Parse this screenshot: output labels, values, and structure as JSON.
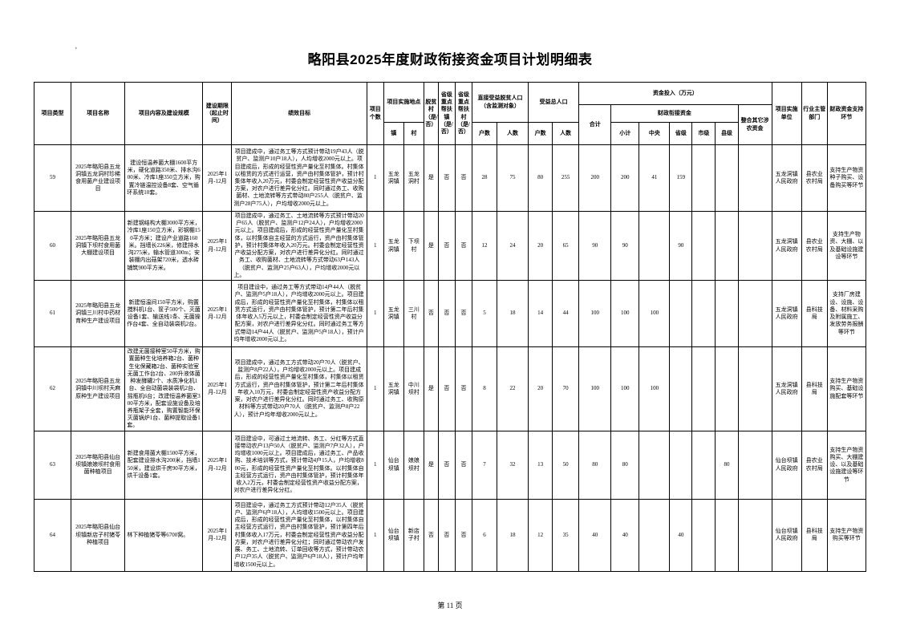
{
  "page": {
    "title": "略阳县2025年度财政衔接资金项目计划明细表",
    "page_number": "第 11 页",
    "corner_mark": "'"
  },
  "table": {
    "headers": {
      "project_type": "项目类型",
      "project_name": "项目名称",
      "content_scale": "项目内容及建设规模",
      "period": "建设期限（起止时间）",
      "performance_goal": "绩效目标",
      "project_count": "项目个数",
      "location": "项目实施地点",
      "town": "镇",
      "village": "村",
      "poor_village": "脱贫村（是/否）",
      "key_town": "省级重点帮扶镇（是/否）",
      "key_village": "省级重点帮扶村（是/否）",
      "direct_benefit": "直接受益脱贫人口（含监测对象）",
      "households": "户数",
      "people": "人数",
      "total_benefit": "受益总人口",
      "investment": "资金投入（万元）",
      "fund_total": "合计",
      "fiscal_funds": "财政衔接资金",
      "subtotal": "小计",
      "central": "中央",
      "provincial": "省级",
      "municipal": "市级",
      "county": "县级",
      "other_funds": "整合其它涉农资金",
      "implement_unit": "项目实施单位",
      "industry_dept": "行业主管部门",
      "support_stage": "财政资金支持环节"
    },
    "rows": [
      {
        "seq": "59",
        "name": "2025年略阳县五龙洞镇五龙洞村珍稀食用菌产业建设项目",
        "content": "建设恒温养菌大棚1600平方米，硬化道路350米、排水沟600米、冷库1座350立方米，购置冷链温控设备8套、空气循环系统10套。",
        "period": "2025年1月-12月",
        "goal": "项目建成中，通过务工等方式预计带动19户43人（脱贫户、监测户10户18人），人均增收2000元以上。项目建成后，形成的经营性资产量化至村集体。村集体以租赁的方式进行运营，资产由村集体管护，预计村集体年收入20万元，村委会制定经营性资产收益分配方案，对农户进行差异化分红。同时通过务工、收购菌材、土地流转等方式带动80户255人（脱贫户、监测户28户75人），户均增收2000元以上。",
        "count": "1",
        "town": "五龙洞镇",
        "village": "五龙洞村",
        "poor_village": "是",
        "key_town": "否",
        "key_village": "否",
        "direct_hh": "28",
        "direct_pp": "75",
        "total_hh": "80",
        "total_pp": "255",
        "fund_total": "200",
        "fund_subtotal": "200",
        "fund_central": "41",
        "fund_provincial": "159",
        "fund_municipal": "",
        "fund_county": "",
        "fund_other": "",
        "unit": "五龙洞镇人民政府",
        "dept": "县农业农村局",
        "support": "支持生产物资种子购买、设备购买等环节"
      },
      {
        "seq": "60",
        "name": "2025年略阳县五龙洞镇下坝村食用菌大棚建设项目",
        "content": "新建钢结构大棚3000平方米，冷库1座150立方米，彩钢棚150平方米；建设产业道路160米。挡墙长226米，修建排水沟275米，输水管道300m；安装棚内出菇架720米，透水砖铺筑900平方米。",
        "period": "2025年1月-12月",
        "goal": "项目建成中，通过务工、土地流转等方式预计带动20户65人（脱贫户、监测户12户24人），户均增收2000元以上。项目建成后，形成的经营性资产量化至村集体，以村集体自主经营的方式运行，资产由村集体管护，预计村集体年收入20万元。村委会制定经营性资产收益分配方案，对农户进行差异化分红。同时通过务工、收购菌材、土地流转等方式带动63户143人（脱贫户、监测户25户63人），户均增收2000元以上。",
        "count": "1",
        "town": "五龙洞镇",
        "village": "下坝村",
        "poor_village": "是",
        "key_town": "否",
        "key_village": "否",
        "direct_hh": "12",
        "direct_pp": "24",
        "total_hh": "20",
        "total_pp": "65",
        "fund_total": "90",
        "fund_subtotal": "90",
        "fund_central": "",
        "fund_provincial": "90",
        "fund_municipal": "",
        "fund_county": "",
        "fund_other": "",
        "unit": "五龙洞镇人民政府",
        "dept": "县农业农村局",
        "support": "支持生产物资、大棚、以及基础设施建设等环节"
      },
      {
        "seq": "61",
        "name": "2025年略阳县五龙洞镇三川村中药材育种生产建设项目",
        "content": "新建恒温间150平方米，购置搅料机1台、筐子500个、灭菌设备1套、输送线1条、无菌操作台4套、全自动装袋机2台。",
        "period": "2025年1月-12月",
        "goal": "项目建设中，通过务工等方式带动14户44人（脱贫户、监测户5户18人），户均增收2000元以上。项目建成后，形成的经营性资产量化至村集体，村集体以租赁方式运行，资产由村集体管护，预计第二年后村集体年收入5万元以上，村委会制定经营性资产收益分配方案，对农户进行差异化分红。同时通过务工等方式带动14户44人（脱贫户、监测户5户18人），预计户均年增收2000元以上。",
        "count": "1",
        "town": "五龙洞镇",
        "village": "三川村",
        "poor_village": "否",
        "key_town": "否",
        "key_village": "否",
        "direct_hh": "5",
        "direct_pp": "18",
        "total_hh": "14",
        "total_pp": "44",
        "fund_total": "100",
        "fund_subtotal": "100",
        "fund_central": "100",
        "fund_provincial": "",
        "fund_municipal": "",
        "fund_county": "",
        "fund_other": "",
        "unit": "五龙洞镇人民政府",
        "dept": "县科技局",
        "support": "支持厂房建设、设施、设备、材料采购及附属施工、发放劳务报酬等环节"
      },
      {
        "seq": "62",
        "name": "2025年略阳县五龙洞镇中川坝村天麻原种生产建设项目",
        "content": "改建无菌接种室50平方米，购置菌种生化培养箱2台、菌种生化保藏箱2台、菌种实验室无菌工作台2台、200升液体菌种发酵罐2个、水质净化机1台、全自动菌袋装袋机2台、摇瓶机6台；改建恒温养菌室300平方米，配套设施设备及培养瓶架子全套，购置智能环保灭菌锅炉1台、菌种提取设备1套。",
        "period": "2025年1月-12月",
        "goal": "项目建成中，通过务工方式带动20户70人（脱贫户、监测户8户22人），户均增收2000元以上。项目建成后，形成的经营性资产量化至村集体，村集体以租赁方式运行，资产由村集体管护，预计第二年后村集体年收入10万元，村委会制定经营性资产收益分配方案，对农户进行差异化分红。同时通过务工、收购原材料等方式带动20户70人（脱贫户、监测户8户22人），预计户均年增收2000元以上。",
        "count": "1",
        "town": "五龙洞镇",
        "village": "中川坝村",
        "poor_village": "是",
        "key_town": "否",
        "key_village": "否",
        "direct_hh": "8",
        "direct_pp": "22",
        "total_hh": "20",
        "total_pp": "70",
        "fund_total": "100",
        "fund_subtotal": "100",
        "fund_central": "100",
        "fund_provincial": "",
        "fund_municipal": "",
        "fund_county": "",
        "fund_other": "",
        "unit": "五龙洞镇人民政府",
        "dept": "县科技局",
        "support": "支持生产物资购买、基础设施配套等环节"
      },
      {
        "seq": "63",
        "name": "2025年略阳县仙台坝镇娘娘坝村食用菌种植项目",
        "content": "新建食用菌大棚1500平方米，配套建设排水沟200米，挡墙150米，建设烘干房90平方米，烘干设备1套。",
        "period": "2025年1月-12月",
        "goal": "项目建设中，可通过土地流转、务工、分红等方式直接带动农户13户50人（脱贫户、监测户7户32人），户均增收1000元以上。项目建成后，通过务工、产品收购、技术培训等方式，预计带动4户15人，户均增收800元，形成的经营性资产量化至村集体。以村集体自主经营方式运行，资产由村集体管护，预计村集体年收入2万元，村委会制定经营性资产收益分配方案，对农户进行差异化分红。",
        "count": "1",
        "town": "仙台坝镇",
        "village": "娘娘坝村",
        "poor_village": "是",
        "key_town": "否",
        "key_village": "否",
        "direct_hh": "7",
        "direct_pp": "32",
        "total_hh": "13",
        "total_pp": "50",
        "fund_total": "80",
        "fund_subtotal": "80",
        "fund_central": "",
        "fund_provincial": "",
        "fund_municipal": "",
        "fund_county": "80",
        "fund_other": "",
        "unit": "仙台坝镇人民政府",
        "dept": "县农业农村局",
        "support": "支持生产物资购买、大棚建设、以及基础设施建设等环节"
      },
      {
        "seq": "64",
        "name": "2025年略阳县仙台坝镇新店子村猪苓种植项目",
        "content": "林下种植猪苓等6700窝。",
        "period": "2025年1月-12月",
        "goal": "项目建设中，通过务工方式预计带动12户35人（脱贫户、监测户6户18人），人均增收1500元以上。项目建成后，形成的经营性资产量化至村集体，以村集体自主经营方式运行，资产由村集体管护，预计第四年后村集体收入17万元，村委会制定经营性资产收益分配方案，对农户进行差异化分红；同时通过带动农户发展、务工、土地流转、订单回收等方式，预计带动农户12户35人（脱贫户、监测户6户18人），预计户均年增收1500元以上。",
        "count": "1",
        "town": "仙台坝镇",
        "village": "新店子村",
        "poor_village": "否",
        "key_town": "否",
        "key_village": "否",
        "direct_hh": "6",
        "direct_pp": "18",
        "total_hh": "12",
        "total_pp": "35",
        "fund_total": "40",
        "fund_subtotal": "40",
        "fund_central": "",
        "fund_provincial": "40",
        "fund_municipal": "",
        "fund_county": "",
        "fund_other": "",
        "unit": "仙台坝镇人民政府",
        "dept": "县科技局",
        "support": "支持生产物资购买等环节"
      }
    ]
  }
}
